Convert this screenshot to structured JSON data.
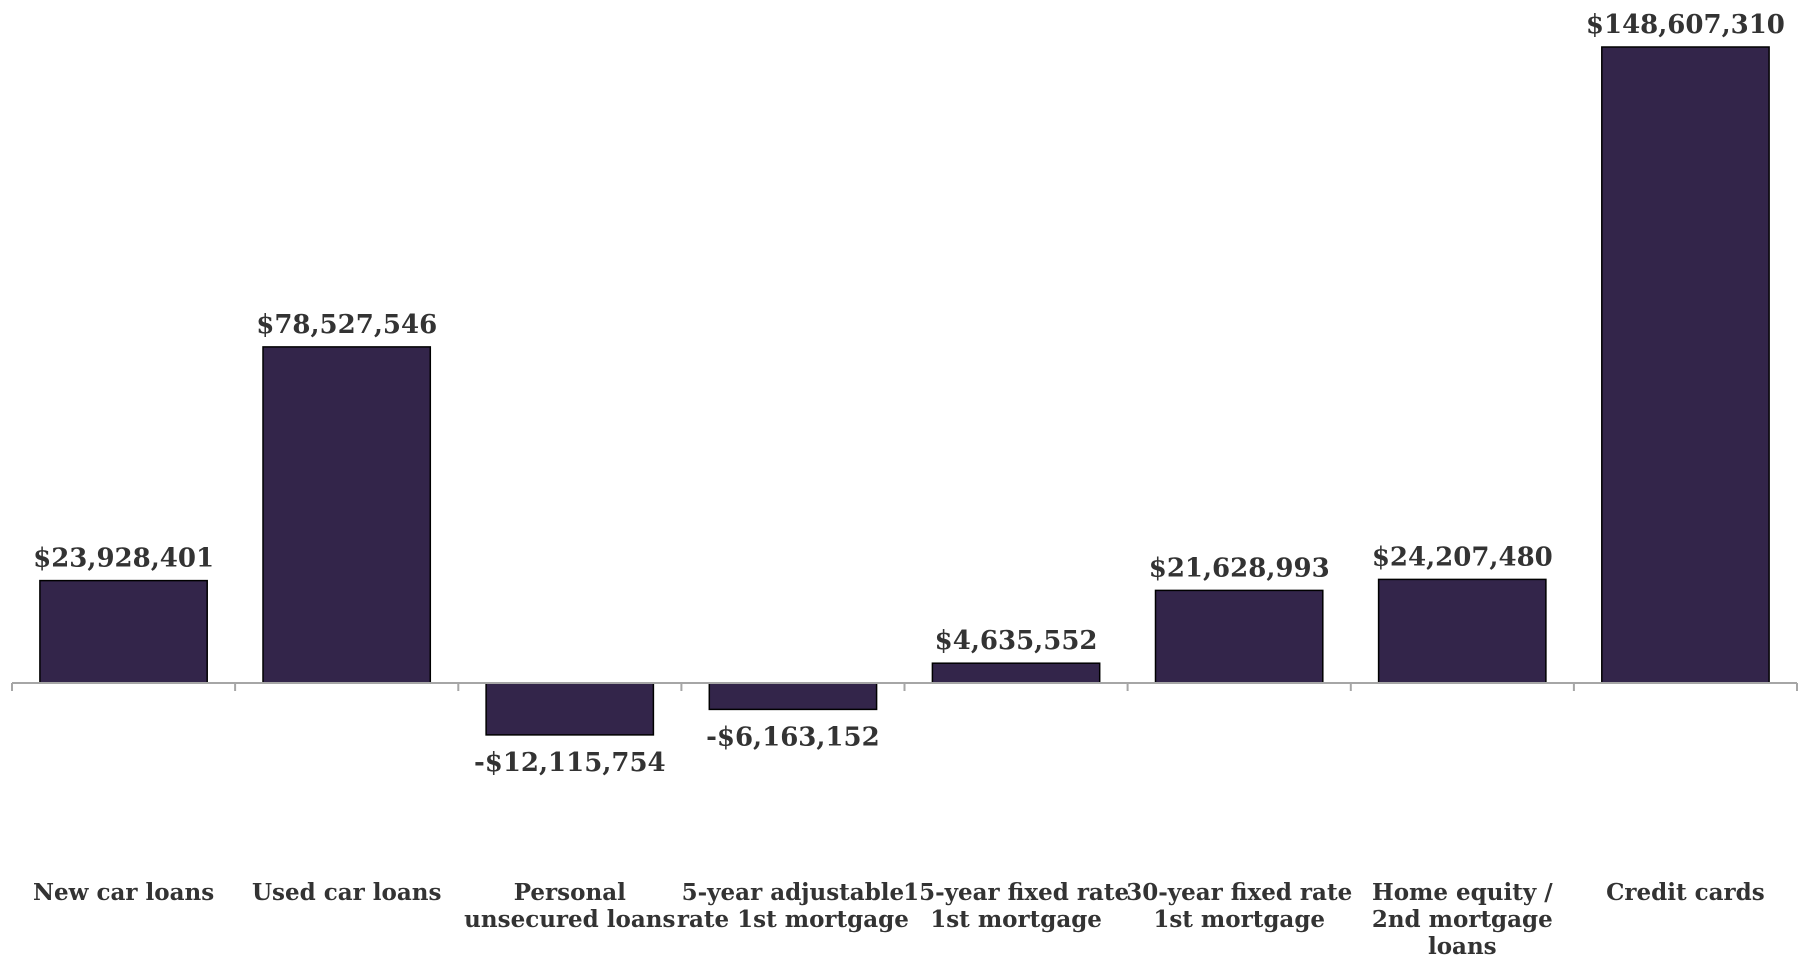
{
  "chart_data": {
    "type": "bar",
    "title": "",
    "xlabel": "",
    "ylabel": "",
    "categories": [
      [
        "New car loans"
      ],
      [
        "Used car loans"
      ],
      [
        "Personal",
        "unsecured loans"
      ],
      [
        "5-year adjustable",
        "rate 1st mortgage"
      ],
      [
        "15-year fixed rate",
        "1st mortgage"
      ],
      [
        "30-year fixed rate",
        "1st mortgage"
      ],
      [
        "Home equity /",
        "2nd mortgage",
        "loans"
      ],
      [
        "Credit cards"
      ]
    ],
    "values": [
      23928401,
      78527546,
      -12115754,
      -6163152,
      4635552,
      21628993,
      24207480,
      148607310
    ],
    "value_labels": [
      "$23,928,401",
      "$78,527,546",
      "-$12,115,754",
      "-$6,163,152",
      "$4,635,552",
      "$21,628,993",
      "$24,207,480",
      "$148,607,310"
    ],
    "colors": {
      "bar": "#33254a",
      "bar_outline": "#000000",
      "axis": "#a6a6a6",
      "text": "#333333"
    },
    "grid": false,
    "legend": "none"
  }
}
